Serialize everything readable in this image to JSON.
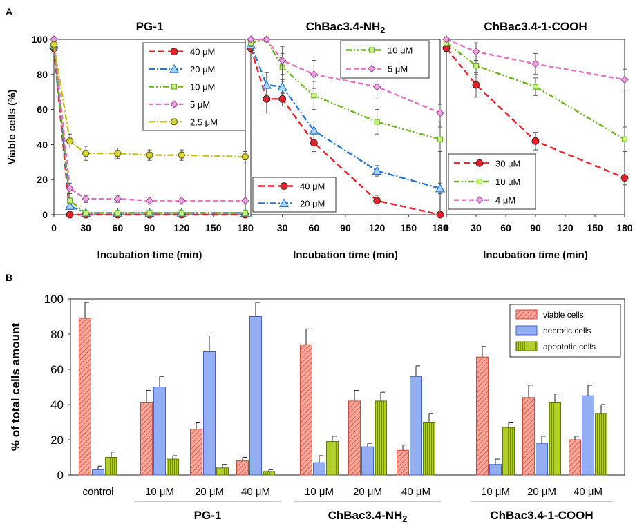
{
  "colors": {
    "red": "#e8202a",
    "blue": "#2577cf",
    "green": "#6cb41c",
    "pink": "#e66fc8",
    "olive": "#c4c01a",
    "bar_viable_fill": "#f5a89a",
    "bar_viable_stroke": "#d24a3c",
    "bar_necrotic_fill": "#93aef3",
    "bar_necrotic_stroke": "#4462c8",
    "bar_apoptotic_fill": "#a8c81a",
    "bar_apoptotic_stroke": "#5e7a0c"
  },
  "panels": {
    "a_label": "A",
    "b_label": "B"
  },
  "chart_data": [
    {
      "type": "line",
      "panel": "A",
      "title": "PG-1",
      "xlabel": "Incubation time (min)",
      "ylabel": "Viable cells (%)",
      "xlim": [
        0,
        180
      ],
      "ylim": [
        0,
        100
      ],
      "xticks": [
        0,
        30,
        60,
        90,
        120,
        150,
        180
      ],
      "yticks": [
        0,
        20,
        40,
        60,
        80,
        100
      ],
      "legend_position": "top-right",
      "series": [
        {
          "name": "40 μM",
          "color": "red",
          "marker": "circle",
          "dash": "long",
          "x": [
            0,
            15,
            30,
            60,
            90,
            120,
            180
          ],
          "y": [
            95,
            0,
            0,
            0,
            0,
            0,
            0
          ],
          "err": [
            2,
            1,
            1,
            1,
            1,
            1,
            1
          ]
        },
        {
          "name": "20 μM",
          "color": "blue",
          "marker": "triangle",
          "dash": "dashdot",
          "x": [
            0,
            15,
            30,
            60,
            90,
            120,
            180
          ],
          "y": [
            97,
            5,
            1,
            1,
            1,
            1,
            1
          ],
          "err": [
            2,
            2,
            1,
            1,
            1,
            1,
            1
          ]
        },
        {
          "name": "10 μM",
          "color": "green",
          "marker": "square",
          "dash": "dashdotdot",
          "x": [
            0,
            15,
            30,
            60,
            90,
            120,
            180
          ],
          "y": [
            96,
            8,
            1,
            1,
            1,
            1,
            1
          ],
          "err": [
            2,
            2,
            1,
            1,
            1,
            1,
            1
          ]
        },
        {
          "name": "5 μM",
          "color": "pink",
          "marker": "diamond",
          "dash": "medium",
          "x": [
            0,
            15,
            30,
            60,
            90,
            120,
            180
          ],
          "y": [
            100,
            15,
            9,
            9,
            8,
            8,
            8
          ],
          "err": [
            1,
            3,
            2,
            2,
            2,
            2,
            2
          ]
        },
        {
          "name": "2.5 μM",
          "color": "olive",
          "marker": "hexagon",
          "dash": "dashdot",
          "x": [
            0,
            15,
            30,
            60,
            90,
            120,
            180
          ],
          "y": [
            97,
            42,
            35,
            35,
            34,
            34,
            33
          ],
          "err": [
            2,
            4,
            4,
            3,
            3,
            3,
            3
          ]
        }
      ]
    },
    {
      "type": "line",
      "panel": "A",
      "title": "ChBac3.4-NH2",
      "xlabel": "Incubation time (min)",
      "xlim": [
        0,
        180
      ],
      "ylim": [
        0,
        100
      ],
      "xticks": [
        0,
        30,
        60,
        90,
        120,
        150,
        180
      ],
      "legend_position": "top-right and bottom-left",
      "series": [
        {
          "name": "40 μM",
          "color": "red",
          "marker": "circle",
          "dash": "long",
          "x": [
            0,
            15,
            30,
            60,
            120,
            180
          ],
          "y": [
            95,
            66,
            66,
            41,
            8,
            0
          ],
          "err": [
            2,
            8,
            4,
            5,
            3,
            1
          ]
        },
        {
          "name": "20 μM",
          "color": "blue",
          "marker": "triangle",
          "dash": "dashdot",
          "x": [
            0,
            15,
            30,
            60,
            120,
            180
          ],
          "y": [
            97,
            74,
            73,
            48,
            25,
            15
          ],
          "err": [
            2,
            7,
            4,
            5,
            3,
            3
          ]
        },
        {
          "name": "10 μM",
          "color": "green",
          "marker": "square",
          "dash": "dashdotdot",
          "x": [
            0,
            15,
            30,
            60,
            120,
            180
          ],
          "y": [
            98,
            100,
            84,
            68,
            53,
            43
          ],
          "err": [
            2,
            1,
            8,
            8,
            7,
            7
          ]
        },
        {
          "name": "5 μM",
          "color": "pink",
          "marker": "diamond",
          "dash": "medium",
          "x": [
            0,
            15,
            30,
            60,
            120,
            180
          ],
          "y": [
            100,
            100,
            88,
            80,
            73,
            58
          ],
          "err": [
            1,
            1,
            8,
            8,
            7,
            5
          ]
        }
      ]
    },
    {
      "type": "line",
      "panel": "A",
      "title": "ChBac3.4-1-COOH",
      "xlabel": "Incubation time (min)",
      "xlim": [
        0,
        180
      ],
      "ylim": [
        0,
        100
      ],
      "xticks": [
        0,
        30,
        60,
        90,
        120,
        150,
        180
      ],
      "legend_position": "bottom-left",
      "series": [
        {
          "name": "30 μM",
          "color": "red",
          "marker": "circle",
          "dash": "long",
          "x": [
            0,
            30,
            90,
            180
          ],
          "y": [
            95,
            74,
            42,
            21
          ],
          "err": [
            2,
            7,
            5,
            4
          ]
        },
        {
          "name": "10 μM",
          "color": "green",
          "marker": "square",
          "dash": "dashdotdot",
          "x": [
            0,
            30,
            90,
            180
          ],
          "y": [
            98,
            85,
            73,
            43
          ],
          "err": [
            2,
            5,
            5,
            7
          ]
        },
        {
          "name": "4 μM",
          "color": "pink",
          "marker": "diamond",
          "dash": "medium",
          "x": [
            0,
            30,
            90,
            180
          ],
          "y": [
            100,
            93,
            86,
            77
          ],
          "err": [
            1,
            5,
            6,
            6
          ]
        }
      ]
    },
    {
      "type": "bar",
      "panel": "B",
      "ylabel": "% of total cells amount",
      "ylim": [
        0,
        100
      ],
      "yticks": [
        0,
        20,
        40,
        60,
        80,
        100
      ],
      "legend_position": "top-right",
      "categories": [
        "control",
        "10 μM",
        "20 μM",
        "40 μM",
        "10 μM",
        "20 μM",
        "40 μM",
        "10 μM",
        "20 μM",
        "40 μM"
      ],
      "groups": [
        {
          "label": "",
          "from": 0,
          "to": 0
        },
        {
          "label": "PG-1",
          "from": 1,
          "to": 3
        },
        {
          "label": "ChBac3.4-NH2",
          "from": 4,
          "to": 6
        },
        {
          "label": "ChBac3.4-1-COOH",
          "from": 7,
          "to": 9
        }
      ],
      "series": [
        {
          "name": "viable cells",
          "pattern": "hatch",
          "values": [
            89,
            41,
            26,
            8,
            74,
            42,
            14,
            67,
            44,
            20
          ],
          "err": [
            9,
            7,
            4,
            2,
            9,
            6,
            3,
            6,
            7,
            2
          ]
        },
        {
          "name": "necrotic cells",
          "pattern": "solid",
          "values": [
            3,
            50,
            70,
            90,
            7,
            16,
            56,
            6,
            18,
            45
          ],
          "err": [
            2,
            6,
            9,
            8,
            4,
            2,
            6,
            3,
            4,
            6
          ]
        },
        {
          "name": "apoptotic cells",
          "pattern": "vertical",
          "values": [
            10,
            9,
            4,
            2,
            19,
            42,
            30,
            27,
            41,
            35
          ],
          "err": [
            3,
            2,
            2,
            1,
            3,
            5,
            5,
            3,
            5,
            5
          ]
        }
      ]
    }
  ]
}
